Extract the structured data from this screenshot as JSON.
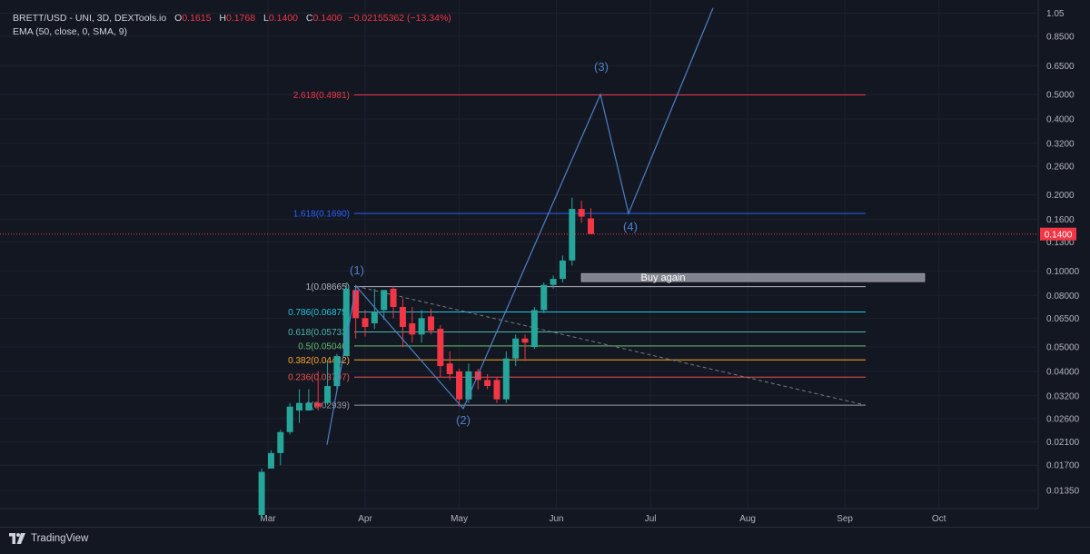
{
  "header": {
    "symbol": "BRETT/USD",
    "source": " - UNI, 3D, DEXTools.io",
    "o_label": "O",
    "o": "0.1615",
    "h_label": "H",
    "h": "0.1768",
    "l_label": "L",
    "l": "0.1400",
    "c_label": "C",
    "c": "0.1400",
    "change": "−0.02155362 (−13.34%)",
    "indicator": "EMA (50, close, 0, SMA, 9)"
  },
  "footer": {
    "brand": "TradingView"
  },
  "colors": {
    "background": "#131722",
    "up": "#26a69a",
    "down": "#f23645",
    "wave": "#4f80c8",
    "last_price": "#f23645"
  },
  "chart_data": {
    "type": "candlestick",
    "scale": "log",
    "y_axis_ticks": [
      "1.05",
      "0.8500",
      "0.6500",
      "0.5000",
      "0.4000",
      "0.3200",
      "0.2600",
      "0.2000",
      "0.1600",
      "0.1300",
      "0.10000",
      "0.08000",
      "0.06500",
      "0.05000",
      "0.04000",
      "0.03200",
      "0.02600",
      "0.02100",
      "0.01700",
      "0.01350"
    ],
    "x_axis_ticks": [
      "Mar",
      "Apr",
      "May",
      "Jun",
      "Jul",
      "Aug",
      "Sep",
      "Oct"
    ],
    "last_price_label": "0.1400",
    "candles": [
      {
        "date": "2024-02-28",
        "o": 0.0108,
        "h": 0.0165,
        "l": 0.0105,
        "c": 0.016
      },
      {
        "date": "2024-03-02",
        "o": 0.0165,
        "h": 0.0195,
        "l": 0.0165,
        "c": 0.019
      },
      {
        "date": "2024-03-05",
        "o": 0.019,
        "h": 0.0235,
        "l": 0.017,
        "c": 0.023
      },
      {
        "date": "2024-03-08",
        "o": 0.023,
        "h": 0.03,
        "l": 0.0225,
        "c": 0.029
      },
      {
        "date": "2024-03-11",
        "o": 0.028,
        "h": 0.034,
        "l": 0.025,
        "c": 0.03
      },
      {
        "date": "2024-03-14",
        "o": 0.028,
        "h": 0.034,
        "l": 0.028,
        "c": 0.03
      },
      {
        "date": "2024-03-17",
        "o": 0.03,
        "h": 0.04,
        "l": 0.028,
        "c": 0.029
      },
      {
        "date": "2024-03-20",
        "o": 0.03,
        "h": 0.044,
        "l": 0.0295,
        "c": 0.035
      },
      {
        "date": "2024-03-23",
        "o": 0.035,
        "h": 0.047,
        "l": 0.034,
        "c": 0.046
      },
      {
        "date": "2024-03-26",
        "o": 0.046,
        "h": 0.09,
        "l": 0.046,
        "c": 0.085
      },
      {
        "date": "2024-03-29",
        "o": 0.084,
        "h": 0.088,
        "l": 0.054,
        "c": 0.065
      },
      {
        "date": "2024-04-01",
        "o": 0.065,
        "h": 0.07,
        "l": 0.055,
        "c": 0.06
      },
      {
        "date": "2024-04-04",
        "o": 0.062,
        "h": 0.085,
        "l": 0.059,
        "c": 0.069
      },
      {
        "date": "2024-04-07",
        "o": 0.07,
        "h": 0.084,
        "l": 0.064,
        "c": 0.084
      },
      {
        "date": "2024-04-10",
        "o": 0.085,
        "h": 0.087,
        "l": 0.065,
        "c": 0.072
      },
      {
        "date": "2024-04-13",
        "o": 0.072,
        "h": 0.078,
        "l": 0.05,
        "c": 0.06
      },
      {
        "date": "2024-04-16",
        "o": 0.062,
        "h": 0.072,
        "l": 0.052,
        "c": 0.056
      },
      {
        "date": "2024-04-19",
        "o": 0.056,
        "h": 0.07,
        "l": 0.052,
        "c": 0.065
      },
      {
        "date": "2024-04-22",
        "o": 0.066,
        "h": 0.071,
        "l": 0.056,
        "c": 0.058
      },
      {
        "date": "2024-04-25",
        "o": 0.059,
        "h": 0.061,
        "l": 0.038,
        "c": 0.042
      },
      {
        "date": "2024-04-28",
        "o": 0.043,
        "h": 0.048,
        "l": 0.037,
        "c": 0.039
      },
      {
        "date": "2024-05-01",
        "o": 0.04,
        "h": 0.041,
        "l": 0.029,
        "c": 0.031
      },
      {
        "date": "2024-05-04",
        "o": 0.031,
        "h": 0.043,
        "l": 0.03,
        "c": 0.04
      },
      {
        "date": "2024-05-07",
        "o": 0.04,
        "h": 0.041,
        "l": 0.034,
        "c": 0.037
      },
      {
        "date": "2024-05-10",
        "o": 0.037,
        "h": 0.039,
        "l": 0.034,
        "c": 0.035
      },
      {
        "date": "2024-05-13",
        "o": 0.037,
        "h": 0.038,
        "l": 0.03,
        "c": 0.031
      },
      {
        "date": "2024-05-16",
        "o": 0.031,
        "h": 0.048,
        "l": 0.03,
        "c": 0.045
      },
      {
        "date": "2024-05-19",
        "o": 0.045,
        "h": 0.056,
        "l": 0.042,
        "c": 0.054
      },
      {
        "date": "2024-05-22",
        "o": 0.054,
        "h": 0.056,
        "l": 0.044,
        "c": 0.052
      },
      {
        "date": "2024-05-25",
        "o": 0.05,
        "h": 0.072,
        "l": 0.049,
        "c": 0.07
      },
      {
        "date": "2024-05-28",
        "o": 0.07,
        "h": 0.09,
        "l": 0.068,
        "c": 0.088
      },
      {
        "date": "2024-05-31",
        "o": 0.088,
        "h": 0.096,
        "l": 0.085,
        "c": 0.093
      },
      {
        "date": "2024-06-03",
        "o": 0.093,
        "h": 0.115,
        "l": 0.09,
        "c": 0.11
      },
      {
        "date": "2024-06-06",
        "o": 0.11,
        "h": 0.195,
        "l": 0.105,
        "c": 0.176
      },
      {
        "date": "2024-06-09",
        "o": 0.176,
        "h": 0.19,
        "l": 0.155,
        "c": 0.164
      },
      {
        "date": "2024-06-12",
        "o": 0.1615,
        "h": 0.1768,
        "l": 0.14,
        "c": 0.14
      }
    ],
    "fib_levels": [
      {
        "ratio": 1,
        "label": "1(0.08665)",
        "color": "#b2b5be"
      },
      {
        "ratio": 0.786,
        "label": "0.786(0.06875)",
        "color": "#26c6da"
      },
      {
        "ratio": 0.618,
        "label": "0.618(0.05733)",
        "color": "#4db6ac"
      },
      {
        "ratio": 0.5,
        "label": "0.5(0.05046)",
        "color": "#66bb6a"
      },
      {
        "ratio": 0.382,
        "label": "0.382(0.04442)",
        "color": "#ffa726"
      },
      {
        "ratio": 0.236,
        "label": "0.236(0.03797)",
        "color": "#ef5350"
      },
      {
        "ratio": 0,
        "label": "0(0.02939)",
        "color": "#9598a1"
      }
    ],
    "extension_levels": [
      {
        "label": "1.618(0.1690)",
        "color": "#2962ff"
      },
      {
        "label": "2.618(0.4981)",
        "color": "#f23645"
      }
    ],
    "wave_labels": [
      "(1)",
      "(2)",
      "(3)",
      "(4)"
    ],
    "annotation": "Buy again"
  }
}
